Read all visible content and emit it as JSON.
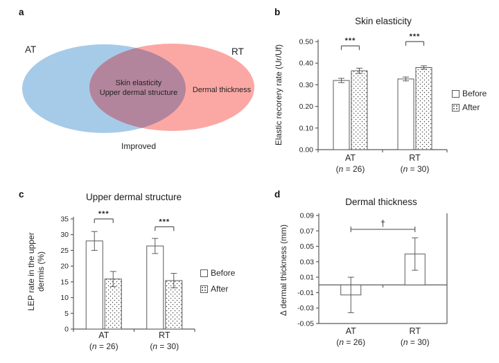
{
  "panels": {
    "a": {
      "letter": "a",
      "venn": {
        "left_label": "AT",
        "right_label": "RT",
        "overlap_line1": "Skin elasticity",
        "overlap_line2": "Upper dermal structure",
        "right_only_label": "Dermal thickness",
        "caption": "Improved",
        "left_color": "#a6cbe8",
        "right_color": "#fba8a5",
        "overlap_color": "#b3859c"
      }
    },
    "b": {
      "letter": "b"
    },
    "c": {
      "letter": "c"
    },
    "d": {
      "letter": "d"
    }
  },
  "styles": {
    "axis_color": "#595959",
    "bar_stroke": "#595959",
    "bar_fill": "#ffffff",
    "dot_color": "#444444",
    "text_color": "#262626"
  },
  "chart_data": [
    {
      "id": "b",
      "type": "bar",
      "title": "Skin elasticity",
      "ylabel": "Elastic recorery rate (Ur/Uf)",
      "categories": [
        "AT",
        "RT"
      ],
      "n_labels": [
        [
          "(",
          "n",
          " = 26)"
        ],
        [
          "(",
          "n",
          " = 30)"
        ]
      ],
      "series": [
        {
          "name": "Before",
          "fill": "plain",
          "values": [
            0.32,
            0.327
          ],
          "errors": [
            0.01,
            0.009
          ]
        },
        {
          "name": "After",
          "fill": "dots",
          "values": [
            0.365,
            0.38
          ],
          "errors": [
            0.012,
            0.008
          ]
        }
      ],
      "ylim": [
        0,
        0.5
      ],
      "ytick_values": [
        0,
        0.1,
        0.2,
        0.3,
        0.4,
        0.5
      ],
      "ytick_labels": [
        "0.00",
        "0.10",
        "0.20",
        "0.30",
        "0.40",
        "0.50"
      ],
      "significance": [
        {
          "label": "***",
          "category": 0,
          "y": 0.48
        },
        {
          "label": "***",
          "category": 1,
          "y": 0.5
        }
      ],
      "legend_position": "right",
      "grid": false
    },
    {
      "id": "c",
      "type": "bar",
      "title": "Upper dermal structure",
      "ylabel": "LEP rate  in the upper dermis (%)",
      "categories": [
        "AT",
        "RT"
      ],
      "n_labels": [
        [
          "(",
          "n",
          " = 26)"
        ],
        [
          "(",
          "n",
          " = 30)"
        ]
      ],
      "series": [
        {
          "name": "Before",
          "fill": "plain",
          "values": [
            28.0,
            26.4
          ],
          "errors": [
            3.0,
            2.4
          ]
        },
        {
          "name": "After",
          "fill": "dots",
          "values": [
            15.9,
            15.4
          ],
          "errors": [
            2.4,
            2.3
          ]
        }
      ],
      "ylim": [
        0,
        35
      ],
      "ytick_values": [
        0,
        5,
        10,
        15,
        20,
        25,
        30,
        35
      ],
      "ytick_labels": [
        "0",
        "5",
        "10",
        "15",
        "20",
        "25",
        "30",
        "35"
      ],
      "significance": [
        {
          "label": "***",
          "category": 0,
          "y": 35.0
        },
        {
          "label": "***",
          "category": 1,
          "y": 32.5
        }
      ],
      "legend_position": "right",
      "grid": false
    },
    {
      "id": "d",
      "type": "bar",
      "title": "Dermal thickness",
      "ylabel": "Δ dermal thickness (mm)",
      "categories": [
        "AT",
        "RT"
      ],
      "n_labels": [
        [
          "(",
          "n",
          " = 26)"
        ],
        [
          "(",
          "n",
          " = 30)"
        ]
      ],
      "series": [
        {
          "name": "",
          "fill": "plain",
          "values": [
            -0.013,
            0.04
          ],
          "errors": [
            0.023,
            0.021
          ]
        }
      ],
      "ylim": [
        -0.05,
        0.09
      ],
      "ytick_values": [
        0.09,
        0.07,
        0.05,
        0.03,
        0.01,
        -0.01,
        -0.03,
        -0.05
      ],
      "ytick_labels": [
        "0.09",
        "0.07",
        "0.05",
        "0.03",
        "0.01",
        "-0.01",
        "-0.03",
        "-0.05"
      ],
      "significance": [
        {
          "label": "†",
          "category_from": 0,
          "category_to": 1,
          "y": 0.072
        }
      ],
      "grid": false
    }
  ]
}
